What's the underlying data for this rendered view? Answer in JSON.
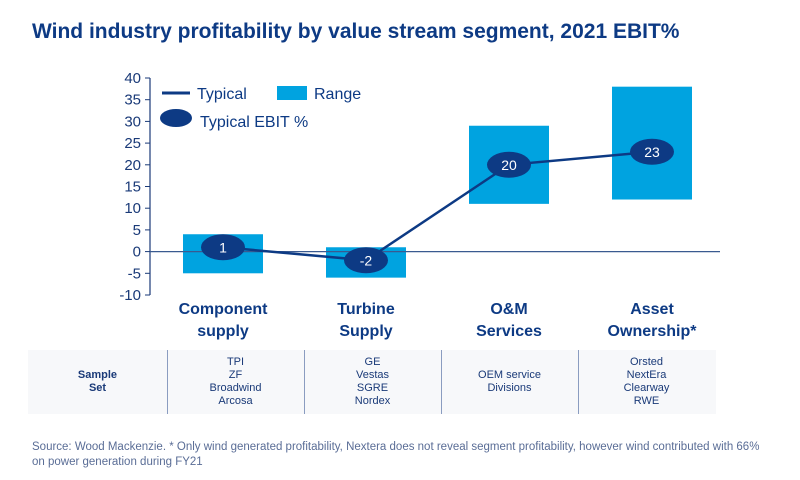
{
  "title": "Wind industry profitability by value stream segment, 2021 EBIT%",
  "chart_data": {
    "type": "bar",
    "title": "Wind industry profitability by value stream segment, 2021 EBIT%",
    "categories": [
      "Component supply",
      "Turbine Supply",
      "O&M Services",
      "Asset Ownership*"
    ],
    "category_lines": [
      [
        "Component",
        "supply"
      ],
      [
        "Turbine",
        "Supply"
      ],
      [
        "O&M",
        "Services"
      ],
      [
        "Asset",
        "Ownership*"
      ]
    ],
    "ranges": [
      [
        -5,
        4
      ],
      [
        -6,
        1
      ],
      [
        11,
        29
      ],
      [
        12,
        38
      ]
    ],
    "typical": [
      1,
      -2,
      20,
      23
    ],
    "typical_labels": [
      "1",
      "-2",
      "20",
      "23"
    ],
    "ylim": [
      -10,
      40
    ],
    "yticks": [
      -10,
      -5,
      0,
      5,
      10,
      15,
      20,
      25,
      30,
      35,
      40
    ],
    "legend": {
      "placement": "top-left",
      "items": [
        "Typical",
        "Range",
        "Typical EBIT %"
      ]
    },
    "colors": {
      "range": "#00a3e0",
      "typical": "#0d3a84",
      "axis": "#1a3a78"
    },
    "grid": false
  },
  "table": {
    "header": [
      "Sample",
      "Set"
    ],
    "columns": [
      [
        "TPI",
        "ZF",
        "Broadwind",
        "Arcosa"
      ],
      [
        "GE",
        "Vestas",
        "SGRE",
        "Nordex"
      ],
      [
        "OEM service",
        "Divisions"
      ],
      [
        "Orsted",
        "NextEra",
        "Clearway",
        "RWE"
      ]
    ]
  },
  "source": "Source: Wood Mackenzie. * Only wind generated profitability, Nextera does not reveal segment profitability, however wind contributed with 66% on power generation during FY21"
}
